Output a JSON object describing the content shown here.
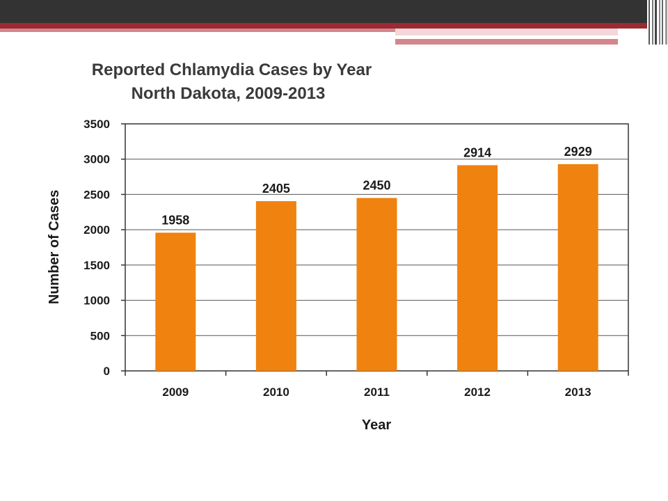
{
  "theme": {
    "bar_color": "#f0820f",
    "header_dark": "#333333",
    "header_red": "#9b2a33",
    "header_pink": "#d4868c"
  },
  "chart_data": {
    "type": "bar",
    "title": "Reported Chlamydia Cases by Year",
    "subtitle": "North Dakota, 2009-2013",
    "xlabel": "Year",
    "ylabel": "Number of Cases",
    "categories": [
      "2009",
      "2010",
      "2011",
      "2012",
      "2013"
    ],
    "values": [
      1958,
      2405,
      2450,
      2914,
      2929
    ],
    "data_labels": [
      "1958",
      "2405",
      "2450",
      "2914",
      "2929"
    ],
    "ylim": [
      0,
      3500
    ],
    "yticks": [
      0,
      500,
      1000,
      1500,
      2000,
      2500,
      3000,
      3500
    ],
    "grid": true,
    "legend": "none"
  }
}
